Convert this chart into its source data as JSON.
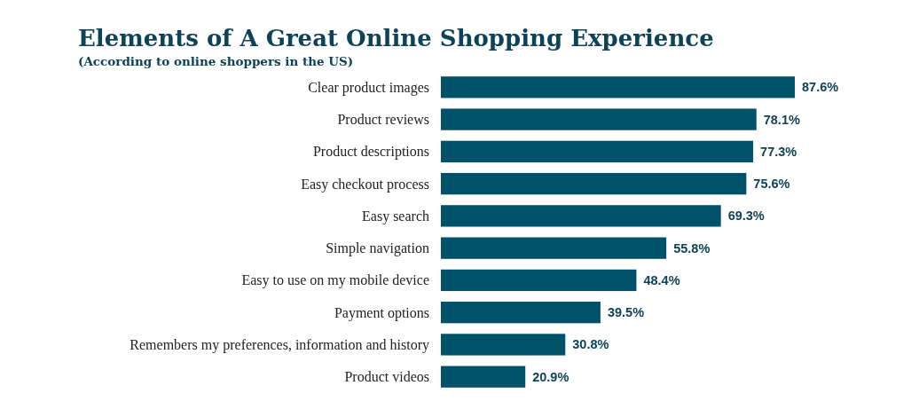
{
  "chart_data": {
    "type": "bar",
    "orientation": "horizontal",
    "title": "Elements of A Great Online Shopping Experience",
    "subtitle": "(According to online shoppers in the US)",
    "categories": [
      "Clear product images",
      "Product reviews",
      "Product descriptions",
      "Easy checkout process",
      "Easy search",
      "Simple navigation",
      "Easy to use on my mobile device",
      "Payment options",
      "Remembers my preferences, information and history",
      "Product videos"
    ],
    "values": [
      87.6,
      78.1,
      77.3,
      75.6,
      69.3,
      55.8,
      48.4,
      39.5,
      30.8,
      20.9
    ],
    "value_labels": [
      "87.6%",
      "78.1%",
      "77.3%",
      "75.6%",
      "69.3%",
      "55.8%",
      "48.4%",
      "39.5%",
      "30.8%",
      "20.9%"
    ],
    "color": "#00526b"
  }
}
